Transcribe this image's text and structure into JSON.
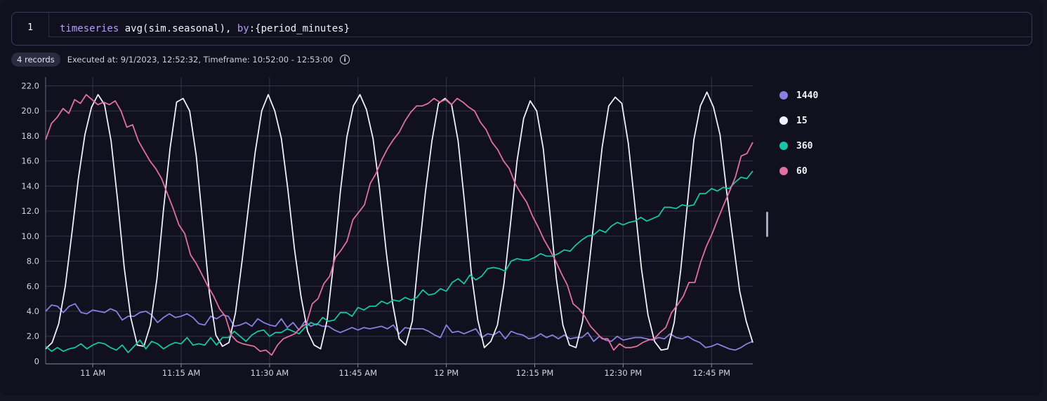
{
  "editor": {
    "line_number": "1",
    "code_fn": "timeseries",
    "code_mid": " avg(sim.seasonal), ",
    "code_by": "by",
    "code_end": ":{period_minutes}"
  },
  "meta": {
    "records": "4 records",
    "executed": "Executed at: 9/1/2023, 12:52:32, Timeframe: 10:52:00 - 12:53:00",
    "info_symbol": "i"
  },
  "chart_data": {
    "type": "line",
    "title": "",
    "xlabel": "",
    "ylabel": "",
    "x_domain_minutes": [
      0,
      120
    ],
    "x_ticks": [
      {
        "minute": 8,
        "label": "11 AM"
      },
      {
        "minute": 23,
        "label": "11:15 AM"
      },
      {
        "minute": 38,
        "label": "11:30 AM"
      },
      {
        "minute": 53,
        "label": "11:45 AM"
      },
      {
        "minute": 68,
        "label": "12 PM"
      },
      {
        "minute": 83,
        "label": "12:15 PM"
      },
      {
        "minute": 98,
        "label": "12:30 PM"
      },
      {
        "minute": 113,
        "label": "12:45 PM"
      }
    ],
    "y_ticks": [
      0,
      2,
      4,
      6,
      8,
      10,
      12,
      14,
      16,
      18,
      20,
      22
    ],
    "y_tick_labels": [
      "0",
      "2.0",
      "4.0",
      "6.0",
      "8.0",
      "10.0",
      "12.0",
      "14.0",
      "16.0",
      "18.0",
      "20.0",
      "22.0"
    ],
    "ylim": [
      0,
      22
    ],
    "grid": true,
    "legend_position": "right",
    "series": [
      {
        "name": "1440",
        "color": "#8a7fe0",
        "values": [
          4.0,
          4.5,
          4.4,
          3.9,
          4.4,
          4.6,
          3.9,
          3.8,
          4.1,
          4.0,
          3.9,
          4.2,
          4.0,
          3.3,
          3.6,
          3.6,
          3.9,
          4.0,
          3.7,
          3.1,
          3.5,
          3.8,
          3.5,
          3.6,
          3.8,
          3.5,
          3.0,
          2.9,
          3.6,
          3.4,
          3.7,
          3.6,
          2.8,
          2.9,
          3.1,
          2.8,
          3.4,
          3.1,
          2.9,
          2.8,
          3.4,
          2.7,
          3.1,
          2.5,
          3.2,
          2.8,
          3.0,
          2.8,
          2.8,
          2.5,
          2.3,
          2.5,
          2.7,
          2.5,
          2.7,
          2.6,
          2.7,
          2.8,
          2.6,
          2.9,
          2.2,
          2.7,
          2.6,
          2.6,
          2.6,
          2.4,
          2.1,
          1.9,
          2.9,
          2.3,
          2.4,
          2.2,
          2.4,
          2.6,
          1.9,
          2.2,
          2.1,
          2.4,
          1.8,
          2.4,
          2.2,
          2.1,
          1.8,
          1.9,
          2.2,
          1.9,
          2.1,
          1.8,
          2.1,
          1.8,
          1.9,
          1.9,
          2.3,
          1.6,
          2.0,
          1.7,
          1.6,
          2.0,
          1.7,
          1.8,
          1.9,
          1.9,
          1.8,
          1.7,
          1.9,
          1.8,
          2.2,
          1.9,
          1.8,
          2.0,
          1.7,
          1.5,
          1.1,
          1.2,
          1.4,
          1.2,
          1.0,
          0.9,
          1.1,
          1.4,
          1.6
        ]
      },
      {
        "name": "15",
        "color": "#f0f0fa",
        "values": [
          1.0,
          1.5,
          3.0,
          6.0,
          10.2,
          14.6,
          18.1,
          20.3,
          21.3,
          20.5,
          17.6,
          12.8,
          7.5,
          3.5,
          1.3,
          1.2,
          2.9,
          6.6,
          12.1,
          17.0,
          20.7,
          21.0,
          20.0,
          16.4,
          11.0,
          5.5,
          2.1,
          1.2,
          1.5,
          3.9,
          8.0,
          12.4,
          16.7,
          20.0,
          21.3,
          20.0,
          17.8,
          13.7,
          9.0,
          5.2,
          2.4,
          1.3,
          1.0,
          3.3,
          8.0,
          13.5,
          17.9,
          20.4,
          21.3,
          20.1,
          17.8,
          13.8,
          8.8,
          4.6,
          1.8,
          1.3,
          3.2,
          8.6,
          13.5,
          17.6,
          20.6,
          21.0,
          20.5,
          17.6,
          12.6,
          7.1,
          3.3,
          1.1,
          1.6,
          2.9,
          6.2,
          11.0,
          16.0,
          19.4,
          20.8,
          20.0,
          17.0,
          11.9,
          6.6,
          2.9,
          1.3,
          1.1,
          3.2,
          7.7,
          12.4,
          17.1,
          20.4,
          21.1,
          20.6,
          17.4,
          12.4,
          7.4,
          3.7,
          1.6,
          0.9,
          1.0,
          3.1,
          7.3,
          12.5,
          17.7,
          20.4,
          21.5,
          20.3,
          18.1,
          13.6,
          9.6,
          5.6,
          3.2,
          1.5
        ]
      },
      {
        "name": "360",
        "color": "#17c4a3",
        "values": [
          1.2,
          0.8,
          1.1,
          0.8,
          1.0,
          1.1,
          1.4,
          1.0,
          1.3,
          1.5,
          1.4,
          1.1,
          0.9,
          1.3,
          0.7,
          1.2,
          1.7,
          1.0,
          1.6,
          1.4,
          1.0,
          1.3,
          1.5,
          1.4,
          1.9,
          1.3,
          1.4,
          1.3,
          1.9,
          1.3,
          1.9,
          1.9,
          2.4,
          2.0,
          1.6,
          2.1,
          2.4,
          2.5,
          2.0,
          2.3,
          2.3,
          2.6,
          2.4,
          2.2,
          2.7,
          3.1,
          2.9,
          3.5,
          3.2,
          3.3,
          3.9,
          3.9,
          3.6,
          4.3,
          4.1,
          4.4,
          4.4,
          4.8,
          4.6,
          4.9,
          4.8,
          5.1,
          4.9,
          5.1,
          5.7,
          5.3,
          5.4,
          5.8,
          5.6,
          6.3,
          6.6,
          6.2,
          6.9,
          6.5,
          6.8,
          7.4,
          7.5,
          7.4,
          7.2,
          8.0,
          8.2,
          8.1,
          8.1,
          8.3,
          8.6,
          8.4,
          8.4,
          8.6,
          8.9,
          8.8,
          9.3,
          9.7,
          10.0,
          10.1,
          10.5,
          10.3,
          10.8,
          11.1,
          10.9,
          11.1,
          11.2,
          11.5,
          11.2,
          11.4,
          11.6,
          12.3,
          12.3,
          12.2,
          12.5,
          12.4,
          12.5,
          13.4,
          13.4,
          13.8,
          13.6,
          13.9,
          13.8,
          14.3,
          14.7,
          14.6,
          15.2
        ]
      },
      {
        "name": "60",
        "color": "#e0709e",
        "values": [
          17.7,
          19.0,
          19.5,
          20.2,
          19.8,
          20.9,
          20.6,
          21.3,
          20.9,
          20.5,
          20.7,
          20.5,
          20.8,
          20.0,
          18.7,
          18.9,
          17.6,
          16.8,
          16.0,
          15.4,
          14.6,
          13.4,
          12.2,
          10.9,
          10.2,
          8.5,
          7.8,
          6.9,
          6.0,
          5.2,
          4.2,
          3.6,
          2.1,
          1.6,
          1.4,
          1.3,
          1.2,
          0.8,
          0.9,
          0.5,
          1.3,
          1.8,
          2.0,
          2.2,
          2.7,
          3.0,
          4.6,
          5.0,
          6.2,
          6.8,
          8.3,
          8.9,
          9.6,
          11.3,
          11.9,
          12.5,
          14.2,
          15.0,
          16.1,
          17.0,
          17.7,
          18.3,
          19.2,
          19.9,
          20.4,
          20.4,
          20.6,
          21.0,
          20.7,
          20.9,
          20.5,
          21.0,
          20.7,
          20.3,
          20.0,
          19.1,
          18.5,
          17.5,
          16.9,
          16.0,
          15.4,
          14.2,
          13.4,
          12.7,
          11.6,
          10.7,
          9.7,
          8.9,
          8.0,
          7.0,
          6.1,
          4.6,
          4.2,
          3.6,
          2.8,
          2.3,
          1.8,
          1.8,
          0.9,
          1.4,
          1.1,
          1.1,
          1.2,
          1.5,
          1.7,
          1.8,
          2.3,
          2.7,
          3.9,
          4.5,
          5.2,
          6.3,
          6.3,
          7.9,
          9.2,
          10.2,
          11.4,
          12.5,
          13.6,
          14.7,
          16.4,
          16.6,
          17.5
        ]
      }
    ]
  }
}
